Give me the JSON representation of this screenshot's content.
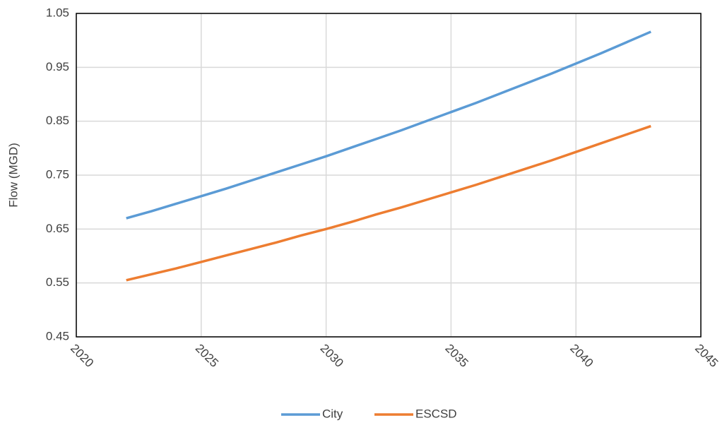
{
  "chart_data": {
    "type": "line",
    "y_label": "Flow (MGD)",
    "x": [
      2022,
      2023,
      2024,
      2025,
      2026,
      2027,
      2028,
      2029,
      2030,
      2031,
      2032,
      2033,
      2034,
      2035,
      2036,
      2037,
      2038,
      2039,
      2040,
      2041,
      2042,
      2043
    ],
    "series": [
      {
        "name": "City",
        "color": "#5b9bd5",
        "values": [
          0.67,
          0.683,
          0.697,
          0.711,
          0.725,
          0.74,
          0.755,
          0.77,
          0.785,
          0.801,
          0.817,
          0.833,
          0.85,
          0.867,
          0.884,
          0.902,
          0.92,
          0.938,
          0.957,
          0.976,
          0.996,
          1.016
        ]
      },
      {
        "name": "ESCSD",
        "color": "#ed7d31",
        "values": [
          0.555,
          0.566,
          0.577,
          0.589,
          0.601,
          0.613,
          0.625,
          0.638,
          0.65,
          0.663,
          0.677,
          0.69,
          0.704,
          0.718,
          0.732,
          0.747,
          0.762,
          0.777,
          0.793,
          0.809,
          0.825,
          0.841
        ]
      }
    ],
    "xlim": [
      2020,
      2045
    ],
    "xticks": [
      2020,
      2025,
      2030,
      2035,
      2040,
      2045
    ],
    "ylim": [
      0.45,
      1.05
    ],
    "yticks": [
      0.45,
      0.55,
      0.65,
      0.75,
      0.85,
      0.95,
      1.05
    ],
    "grid": true,
    "legend": "bottom"
  }
}
